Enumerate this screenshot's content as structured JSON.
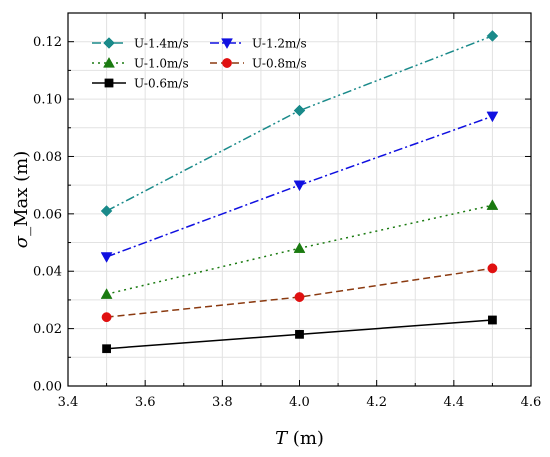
{
  "chart_data": {
    "type": "line",
    "x": [
      3.5,
      4.0,
      4.5
    ],
    "xlim": [
      3.4,
      4.6
    ],
    "ylim": [
      0.0,
      0.13
    ],
    "x_ticks": [
      3.4,
      3.6,
      3.8,
      4.0,
      4.2,
      4.4,
      4.6
    ],
    "x_tick_labels": [
      "3.4",
      "3.6",
      "3.8",
      "4.0",
      "4.2",
      "4.4",
      "4.6"
    ],
    "y_ticks": [
      0.0,
      0.02,
      0.04,
      0.06,
      0.08,
      0.1,
      0.12
    ],
    "y_tick_labels": [
      "0.00",
      "0.02",
      "0.04",
      "0.06",
      "0.08",
      "0.10",
      "0.12"
    ],
    "xlabel_symbol": "T",
    "xlabel_unit": " (m)",
    "ylabel_symbol": "σ",
    "ylabel_rest": "_Max (m)",
    "grid": true,
    "legend_position": "top-left",
    "series": [
      {
        "name": "U-1.4m/s",
        "values": [
          0.061,
          0.096,
          0.122
        ],
        "color": "#1a8a8a",
        "marker": "diamond",
        "dash": "dash-dot-dot"
      },
      {
        "name": "U-1.2m/s",
        "values": [
          0.045,
          0.07,
          0.094
        ],
        "color": "#1010e0",
        "marker": "triangle-down",
        "dash": "dash-dot"
      },
      {
        "name": "U-1.0m/s",
        "values": [
          0.032,
          0.048,
          0.063
        ],
        "color": "#1a7a10",
        "marker": "triangle-up",
        "dash": "dot"
      },
      {
        "name": "U-0.8m/s",
        "values": [
          0.024,
          0.031,
          0.041
        ],
        "color": "#8b3a10",
        "marker_color": "#e01010",
        "marker": "circle",
        "dash": "dash"
      },
      {
        "name": "U-0.6m/s",
        "values": [
          0.013,
          0.018,
          0.023
        ],
        "color": "#000000",
        "marker": "square",
        "dash": "solid"
      }
    ]
  }
}
